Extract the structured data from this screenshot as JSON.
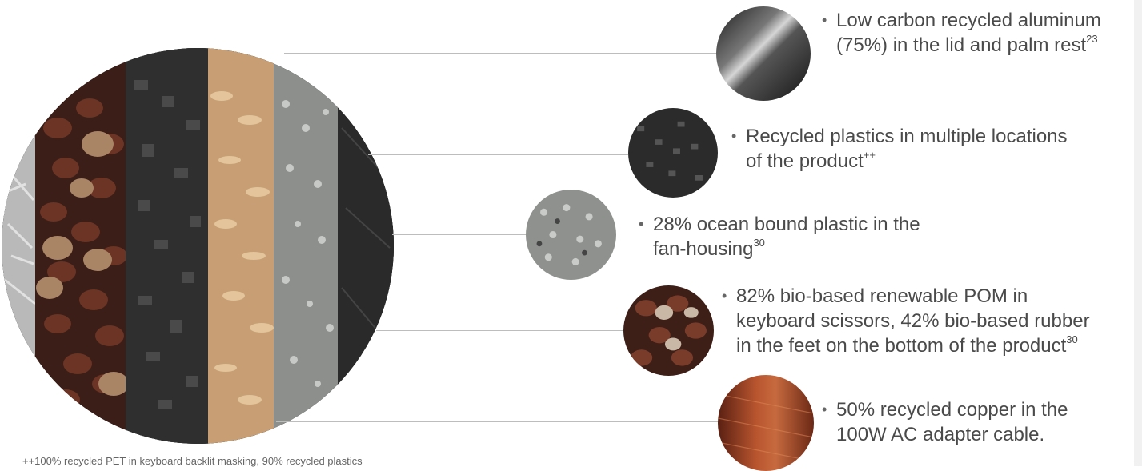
{
  "callouts": [
    {
      "line1": "Low carbon recycled aluminum",
      "line2": "(75%) in the lid and palm rest",
      "sup": "23",
      "thumb_icon": "aluminum-swatch"
    },
    {
      "line1": "Recycled plastics in multiple locations",
      "line2": "of the product",
      "sup": "++",
      "thumb_icon": "plastic-pellet-swatch"
    },
    {
      "line1": "28% ocean bound plastic in the",
      "line2": "fan-housing",
      "sup": "30",
      "thumb_icon": "ocean-plastic-swatch"
    },
    {
      "line1": "82% bio-based renewable POM in",
      "line2": "keyboard scissors, 42% bio-based rubber",
      "line3": "in the feet on the bottom of the product",
      "sup": "30",
      "thumb_icon": "castor-bean-swatch"
    },
    {
      "line1": "50% recycled copper in the",
      "line2": "100W AC adapter cable.",
      "thumb_icon": "copper-wire-swatch"
    }
  ],
  "footnote": "++100% recycled PET in keyboard backlit masking, 90% recycled plastics",
  "bullet": "•",
  "colors": {
    "line": "#bdbdbd",
    "text": "#4a4a4a",
    "copper": "#a8482a",
    "aluminum": "#5a5a5a"
  }
}
